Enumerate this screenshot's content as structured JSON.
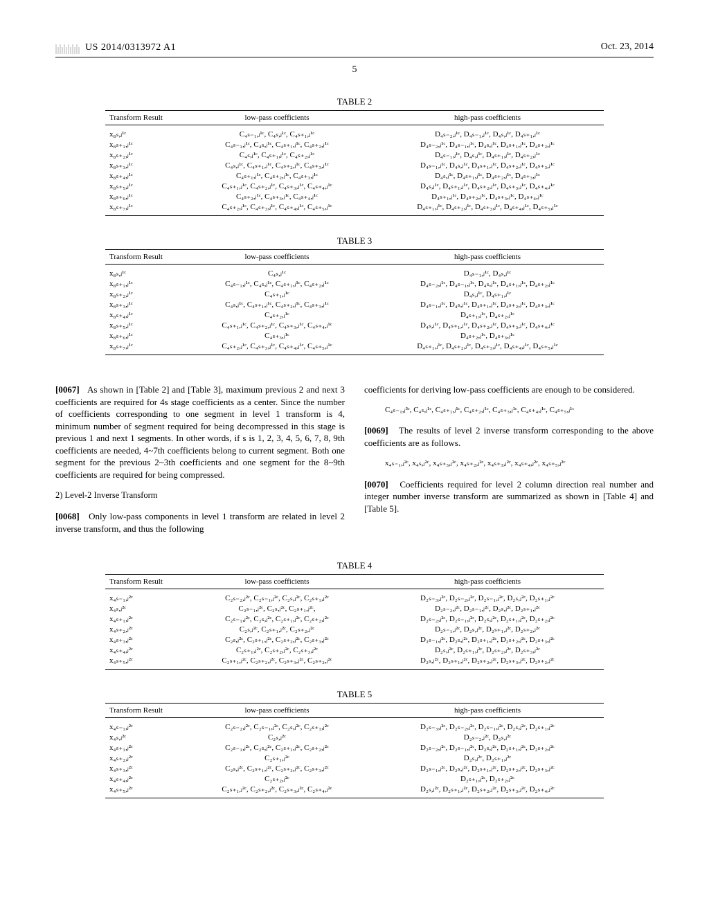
{
  "header": {
    "pub_number": "US 2014/0313972 A1",
    "date": "Oct. 23, 2014"
  },
  "page_number": "5",
  "table2": {
    "caption": "TABLE 2",
    "headers": [
      "Transform Result",
      "low-pass coefficients",
      "high-pass coefficients"
    ],
    "rows": [
      [
        "x₈ₛ,ⱼ¹ᶜ",
        "C₄ₛ₋₁,ⱼ¹ᶜ, C₄ₛ,ⱼ¹ᶜ, C₄ₛ₊₁,ⱼ¹ᶜ",
        "D₄ₛ₋₂,ⱼ¹ᶜ, D₄ₛ₋₁,ⱼ¹ᶜ, D₄ₛ,ⱼ¹ᶜ, D₄ₛ₊₁,ⱼ¹ᶜ"
      ],
      [
        "x₈ₛ₊₁,ⱼ¹ᶜ",
        "C₄ₛ₋₁,ⱼ¹ᶜ, C₄ₛ,ⱼ¹ᶜ, C₄ₛ₊₁,ⱼ¹ᶜ, C₄ₛ₊₂,ⱼ¹ᶜ",
        "D₄ₛ₋₂,ⱼ¹ᶜ, D₄ₛ₋₁,ⱼ¹ᶜ, D₄ₛ,ⱼ¹ᶜ, D₄ₛ₊₁,ⱼ¹ᶜ, D₄ₛ₊₂,ⱼ¹ᶜ"
      ],
      [
        "x₈ₛ₊₂,ⱼ¹ᶜ",
        "C₄ₛ,ⱼ¹ᶜ, C₄ₛ₊₁,ⱼ¹ᶜ, C₄ₛ₊₂,ⱼ¹ᶜ",
        "D₄ₛ₋₁,ⱼ¹ᶜ, D₄ₛ,ⱼ¹ᶜ, D₄ₛ₊₁,ⱼ¹ᶜ, D₄ₛ₊₂,ⱼ¹ᶜ"
      ],
      [
        "x₈ₛ₊₃,ⱼ¹ᶜ",
        "C₄ₛ,ⱼ¹ᶜ, C₄ₛ₊₁,ⱼ¹ᶜ, C₄ₛ₊₂,ⱼ¹ᶜ, C₄ₛ₊₃,ⱼ¹ᶜ",
        "D₄ₛ₋₁,ⱼ¹ᶜ, D₄ₛ,ⱼ¹ᶜ, D₄ₛ₊₁,ⱼ¹ᶜ, D₄ₛ₊₂,ⱼ¹ᶜ, D₄ₛ₊₃,ⱼ¹ᶜ"
      ],
      [
        "x₈ₛ₊₄,ⱼ¹ᶜ",
        "C₄ₛ₊₁,ⱼ¹ᶜ, C₄ₛ₊₂,ⱼ¹ᶜ, C₄ₛ₊₃,ⱼ¹ᶜ",
        "D₄ₛ,ⱼ¹ᶜ, D₄ₛ₊₁,ⱼ¹ᶜ, D₄ₛ₊₂,ⱼ¹ᶜ, D₄ₛ₊₃,ⱼ¹ᶜ"
      ],
      [
        "x₈ₛ₊₅,ⱼ¹ᶜ",
        "C₄ₛ₊₁,ⱼ¹ᶜ, C₄ₛ₊₂,ⱼ¹ᶜ, C₄ₛ₊₃,ⱼ¹ᶜ, C₄ₛ₊₄,ⱼ¹ᶜ",
        "D₄ₛ,ⱼ¹ᶜ, D₄ₛ₊₁,ⱼ¹ᶜ, D₄ₛ₊₂,ⱼ¹ᶜ, D₄ₛ₊₃,ⱼ¹ᶜ, D₄ₛ₊₄,ⱼ¹ᶜ"
      ],
      [
        "x₈ₛ₊₆,ⱼ¹ᶜ",
        "C₄ₛ₊₂,ⱼ¹ᶜ, C₄ₛ₊₃,ⱼ¹ᶜ, C₄ₛ₊₄,ⱼ¹ᶜ",
        "D₄ₛ₊₁,ⱼ¹ᶜ, D₄ₛ₊₂,ⱼ¹ᶜ, D₄ₛ₊₃,ⱼ¹ᶜ, D₄ₛ₊₄,ⱼ¹ᶜ"
      ],
      [
        "x₈ₛ₊₇,ⱼ¹ᶜ",
        "C₄ₛ₊₂,ⱼ¹ᶜ, C₄ₛ₊₃,ⱼ¹ᶜ, C₄ₛ₊₄,ⱼ¹ᶜ, C₄ₛ₊₅,ⱼ¹ᶜ",
        "D₄ₛ₊₁,ⱼ¹ᶜ, D₄ₛ₊₂,ⱼ¹ᶜ, D₄ₛ₊₃,ⱼ¹ᶜ, D₄ₛ₊₄,ⱼ¹ᶜ, D₄ₛ₊₅,ⱼ¹ᶜ"
      ]
    ]
  },
  "table3": {
    "caption": "TABLE 3",
    "headers": [
      "Transform Result",
      "low-pass coefficients",
      "high-pass coefficients"
    ],
    "rows": [
      [
        "x₈ₛ,ⱼ¹ᶜ",
        "C₄ₛ,ⱼ¹ᶜ",
        "D₄ₛ₋₁,ⱼ¹ᶜ, D₄ₛ,ⱼ¹ᶜ"
      ],
      [
        "x₈ₛ₊₁,ⱼ¹ᶜ",
        "C₄ₛ₋₁,ⱼ¹ᶜ, C₄ₛ,ⱼ¹ᶜ, C₄ₛ₊₁,ⱼ¹ᶜ, C₄ₛ₊₂,ⱼ¹ᶜ",
        "D₄ₛ₋₂,ⱼ¹ᶜ, D₄ₛ₋₁,ⱼ¹ᶜ, D₄ₛ,ⱼ¹ᶜ, D₄ₛ₊₁,ⱼ¹ᶜ, D₄ₛ₊₂,ⱼ¹ᶜ"
      ],
      [
        "x₈ₛ₊₂,ⱼ¹ᶜ",
        "C₄ₛ₊₁,ⱼ¹ᶜ",
        "D₄ₛ,ⱼ¹ᶜ, D₄ₛ₊₁,ⱼ¹ᶜ"
      ],
      [
        "x₈ₛ₊₃,ⱼ¹ᶜ",
        "C₄ₛ,ⱼ¹ᶜ, C₄ₛ₊₁,ⱼ¹ᶜ, C₄ₛ₊₂,ⱼ¹ᶜ, C₄ₛ₊₃,ⱼ¹ᶜ",
        "D₄ₛ₋₁,ⱼ¹ᶜ, D₄ₛ,ⱼ¹ᶜ, D₄ₛ₊₁,ⱼ¹ᶜ, D₄ₛ₊₂,ⱼ¹ᶜ, D₄ₛ₊₃,ⱼ¹ᶜ"
      ],
      [
        "x₈ₛ₊₄,ⱼ¹ᶜ",
        "C₄ₛ₊₂,ⱼ¹ᶜ",
        "D₄ₛ₊₁,ⱼ¹ᶜ, D₄ₛ₊₂,ⱼ¹ᶜ"
      ],
      [
        "x₈ₛ₊₅,ⱼ¹ᶜ",
        "C₄ₛ₊₁,ⱼ¹ᶜ, C₄ₛ₊₂,ⱼ¹ᶜ, C₄ₛ₊₃,ⱼ¹ᶜ, C₄ₛ₊₄,ⱼ¹ᶜ",
        "D₄ₛ,ⱼ¹ᶜ, D₄ₛ₊₁,ⱼ¹ᶜ, D₄ₛ₊₂,ⱼ¹ᶜ, D₄ₛ₊₃,ⱼ¹ᶜ, D₄ₛ₊₄,ⱼ¹ᶜ"
      ],
      [
        "x₈ₛ₊₆,ⱼ¹ᶜ",
        "C₄ₛ₊₃,ⱼ¹ᶜ",
        "D₄ₛ₊₂,ⱼ¹ᶜ, D₄ₛ₊₃,ⱼ¹ᶜ"
      ],
      [
        "x₈ₛ₊₇,ⱼ¹ᶜ",
        "C₄ₛ₊₂,ⱼ¹ᶜ, C₄ₛ₊₃,ⱼ¹ᶜ, C₄ₛ₊₄,ⱼ¹ᶜ, C₄ₛ₊₅,ⱼ¹ᶜ",
        "D₄ₛ₊₁,ⱼ¹ᶜ, D₄ₛ₊₂,ⱼ¹ᶜ, D₄ₛ₊₃,ⱼ¹ᶜ, D₄ₛ₊₄,ⱼ¹ᶜ, D₄ₛ₊₅,ⱼ¹ᶜ"
      ]
    ]
  },
  "body": {
    "p67_label": "[0067]",
    "p67_text": "As shown in [Table 2] and [Table 3], maximum previous 2 and next 3 coefficients are required for 4s stage coefficients as a center. Since the number of coefficients corresponding to one segment in level 1 transform is 4, minimum number of segment required for being decompressed in this stage is previous 1 and next 1 segments. In other words, if s is 1, 2, 3, 4, 5, 6, 7, 8, 9th coefficients are needed, 4~7th coefficients belong to current segment. Both one segment for the previous 2~3th coefficients and one segment for the 8~9th coefficients are required for being compressed.",
    "sect2_head": "2) Level-2 Inverse Transform",
    "p68_label": "[0068]",
    "p68_text": "Only low-pass components in level 1 transform are related in level 2 inverse transform, and thus the following",
    "col2_lead": "coefficients for deriving low-pass coefficients are enough to be considered.",
    "eq1": "C₄ₛ₋₁,ⱼ³ᶜ, C₄ₛ,ⱼ¹ᶜ, C₄ₛ₊₁,ⱼ¹ᶜ, C₄ₛ₊₂,ⱼ¹ᶜ, C₄ₛ₊₃,ⱼ¹ᶜ, C₄ₛ₊₄,ⱼ¹ᶜ, C₄ₛ₊₅,ⱼ¹ᶜ",
    "p69_label": "[0069]",
    "p69_text": "The results of level 2 inverse transform corresponding to the above coefficients are as follows.",
    "eq2": "x₄ₛ₋₁,ⱼ²ᶜ, x₄ₛ,ⱼ²ᶜ, x₄ₛ₊₃,ⱼ²ᶜ, x₄ₛ₊₂,ⱼ²ᶜ, x₄ₛ₊₃,ⱼ²ᶜ, x₄ₛ₊₄,ⱼ²ᶜ, x₄ₛ₊₅,ⱼ²ᶜ",
    "p70_label": "[0070]",
    "p70_text": "Coefficients required for level 2 column direction real number and integer number inverse transform are summarized as shown in [Table 4] and [Table 5]."
  },
  "table4": {
    "caption": "TABLE 4",
    "headers": [
      "Transform Result",
      "low-pass coefficients",
      "high-pass coefficients"
    ],
    "rows": [
      [
        "x₄ₛ₋₁,ⱼ²ᶜ",
        "C₂ₛ₋₂,ⱼ²ᶜ, C₂ₛ₋₁,ⱼ²ᶜ, C₂ₛ,ⱼ²ᶜ, C₂ₛ₊₁,ⱼ²ᶜ",
        "D₂ₛ₋₃,ⱼ²ᶜ, D₂ₛ₋₂,ⱼ²ᶜ, D₂ₛ₋₁,ⱼ²ᶜ, D₂ₛ,ⱼ²ᶜ, D₂ₛ₊₁,ⱼ²ᶜ"
      ],
      [
        "x₄ₛ,ⱼ²ᶜ",
        "C₂ₛ₋₁,ⱼ²ᶜ, C₂ₛ,ⱼ²ᶜ, C₂ₛ₊₁,ⱼ²ᶜ,",
        "D₂ₛ₋₂,ⱼ²ᶜ, D₂ₛ₋₁,ⱼ²ᶜ, D₂ₛ,ⱼ²ᶜ, D₂ₛ₊₁,ⱼ²ᶜ"
      ],
      [
        "x₄ₛ₊₁,ⱼ²ᶜ",
        "C₂ₛ₋₁,ⱼ²ᶜ, C₂ₛ,ⱼ²ᶜ, C₂ₛ₊₁,ⱼ²ᶜ, C₂ₛ₊₂,ⱼ²ᶜ",
        "D₂ₛ₋₂,ⱼ²ᶜ, D₂ₛ₋₁,ⱼ²ᶜ, D₂ₛ,ⱼ²ᶜ, D₂ₛ₊₁,ⱼ²ᶜ, D₂ₛ₊₂,ⱼ²ᶜ"
      ],
      [
        "x₄ₛ₊₂,ⱼ²ᶜ",
        "C₂ₛ,ⱼ²ᶜ, C₂ₛ₊₁,ⱼ²ᶜ, C₂ₛ₊₂,ⱼ²ᶜ",
        "D₂ₛ₋₁,ⱼ²ᶜ, D₂ₛ,ⱼ²ᶜ, D₂ₛ₊₁,ⱼ²ᶜ, D₂ₛ₊₂,ⱼ²ᶜ"
      ],
      [
        "x₄ₛ₊₃,ⱼ²ᶜ",
        "C₂ₛ,ⱼ²ᶜ, C₂ₛ₊₁,ⱼ²ᶜ, C₂ₛ₊₂,ⱼ²ᶜ, C₂ₛ₊₃,ⱼ²ᶜ",
        "D₂ₛ₋₁,ⱼ²ᶜ, D₂ₛ,ⱼ²ᶜ, D₂ₛ₊₁,ⱼ²ᶜ, D₂ₛ₊₂,ⱼ²ᶜ, D₂ₛ₊₃,ⱼ²ᶜ"
      ],
      [
        "x₄ₛ₊₄,ⱼ²ᶜ",
        "C₂ₛ₊₁,ⱼ²ᶜ, C₂ₛ₊₂,ⱼ²ᶜ, C₂ₛ₊₃,ⱼ²ᶜ",
        "D₂ₛ,ⱼ²ᶜ, D₂ₛ₊₁,ⱼ²ᶜ, D₂ₛ₊₂,ⱼ²ᶜ, D₂ₛ₊₃,ⱼ²ᶜ"
      ],
      [
        "x₄ₛ₊₅,ⱼ²ᶜ",
        "C₂ₛ₊₁,ⱼ²ᶜ, C₂ₛ₊₂,ⱼ²ᶜ, C₂ₛ₊₃,ⱼ²ᶜ, C₂ₛ₊₂,ⱼ²ᶜ",
        "D₂ₛ,ⱼ²ᶜ, D₂ₛ₊₁,ⱼ²ᶜ, D₂ₛ₊₂,ⱼ²ᶜ, D₂ₛ₊₃,ⱼ²ᶜ, D₂ₛ₊₂,ⱼ²ᶜ"
      ]
    ]
  },
  "table5": {
    "caption": "TABLE 5",
    "headers": [
      "Transform Result",
      "low-pass coefficients",
      "high-pass coefficients"
    ],
    "rows": [
      [
        "x₄ₛ₋₁,ⱼ²ᶜ",
        "C₂ₛ₋₂,ⱼ²ᶜ, C₂ₛ₋₁,ⱼ²ᶜ, C₂ₛ,ⱼ²ᶜ, C₂ₛ₊₁,ⱼ²ᶜ",
        "D₂ₛ₋₃,ⱼ²ᶜ, D₂ₛ₋₂,ⱼ²ᶜ, D₂ₛ₋₁,ⱼ²ᶜ, D₂ₛ,ⱼ²ᶜ, D₂ₛ₊₁,ⱼ²ᶜ"
      ],
      [
        "x₄ₛ,ⱼ²ᶜ",
        "C₂ₛ,ⱼ²ᶜ",
        "D₂ₛ₋₂,ⱼ²ᶜ, D₂ₛ,ⱼ²ᶜ"
      ],
      [
        "x₄ₛ₊₁,ⱼ²ᶜ",
        "C₂ₛ₋₁,ⱼ²ᶜ, C₂ₛ,ⱼ²ᶜ, C₂ₛ₊₁,ⱼ²ᶜ, C₂ₛ₊₂,ⱼ²ᶜ",
        "D₂ₛ₋₂,ⱼ²ᶜ, D₂ₛ₋₁,ⱼ²ᶜ, D₂ₛ,ⱼ²ᶜ, D₂ₛ₊₁,ⱼ²ᶜ, D₂ₛ₊₂,ⱼ²ᶜ"
      ],
      [
        "x₄ₛ₊₂,ⱼ²ᶜ",
        "C₂ₛ₊₁,ⱼ²ᶜ",
        "D₂ₛ,ⱼ²ᶜ, D₂ₛ₊₁,ⱼ²ᶜ"
      ],
      [
        "x₄ₛ₊₃,ⱼ²ᶜ",
        "C₂ₛ,ⱼ²ᶜ, C₂ₛ₊₁,ⱼ²ᶜ, C₂ₛ₊₂,ⱼ²ᶜ, C₂ₛ₊₃,ⱼ²ᶜ",
        "D₂ₛ₋₁,ⱼ²ᶜ, D₂ₛ,ⱼ²ᶜ, D₂ₛ₊₁,ⱼ²ᶜ, D₂ₛ₊₂,ⱼ²ᶜ, D₂ₛ₊₃,ⱼ²ᶜ"
      ],
      [
        "x₄ₛ₊₄,ⱼ²ᶜ",
        "C₂ₛ₊₂,ⱼ²ᶜ",
        "D₂ₛ₊₁,ⱼ²ᶜ, D₂ₛ₊₂,ⱼ²ᶜ"
      ],
      [
        "x₄ₛ₊₅,ⱼ²ᶜ",
        "C₂ₛ₊₁,ⱼ²ᶜ, C₂ₛ₊₂,ⱼ²ᶜ, C₂ₛ₊₃,ⱼ²ᶜ, C₂ₛ₊₄,ⱼ²ᶜ",
        "D₂ₛ,ⱼ²ᶜ, D₂ₛ₊₁,ⱼ²ᶜ, D₂ₛ₊₂,ⱼ²ᶜ, D₂ₛ₊₃,ⱼ²ᶜ, D₂ₛ₊₄,ⱼ²ᶜ"
      ]
    ]
  }
}
